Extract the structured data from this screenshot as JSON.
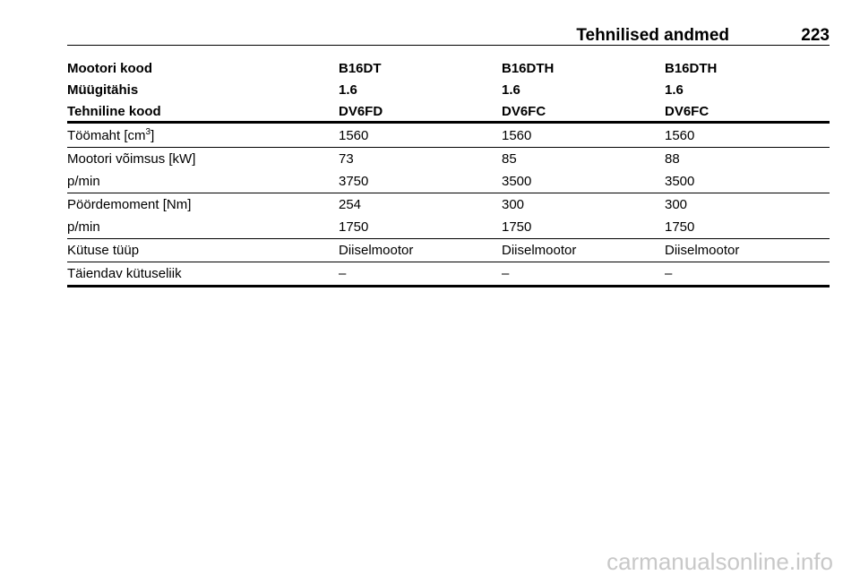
{
  "header": {
    "title": "Tehnilised andmed",
    "page": "223"
  },
  "table": {
    "head": [
      [
        "Mootori kood",
        "B16DT",
        "B16DTH",
        "B16DTH"
      ],
      [
        "Müügitähis",
        "1.6",
        "1.6",
        "1.6"
      ],
      [
        "Tehniline kood",
        "DV6FD",
        "DV6FC",
        "DV6FC"
      ]
    ],
    "groups": [
      [
        [
          {
            "text": "Töömaht [cm",
            "sup": "3",
            "tail": "]"
          },
          "1560",
          "1560",
          "1560"
        ]
      ],
      [
        [
          "Mootori võimsus [kW]",
          "73",
          "85",
          "88"
        ],
        [
          "p/min",
          "3750",
          "3500",
          "3500"
        ]
      ],
      [
        [
          "Pöördemoment [Nm]",
          "254",
          "300",
          "300"
        ],
        [
          "p/min",
          "1750",
          "1750",
          "1750"
        ]
      ],
      [
        [
          "Kütuse tüüp",
          "Diiselmootor",
          "Diiselmootor",
          "Diiselmootor"
        ]
      ],
      [
        [
          "Täiendav kütuseliik",
          "–",
          "–",
          "–"
        ]
      ]
    ]
  },
  "watermark": "carmanualsonline.info"
}
